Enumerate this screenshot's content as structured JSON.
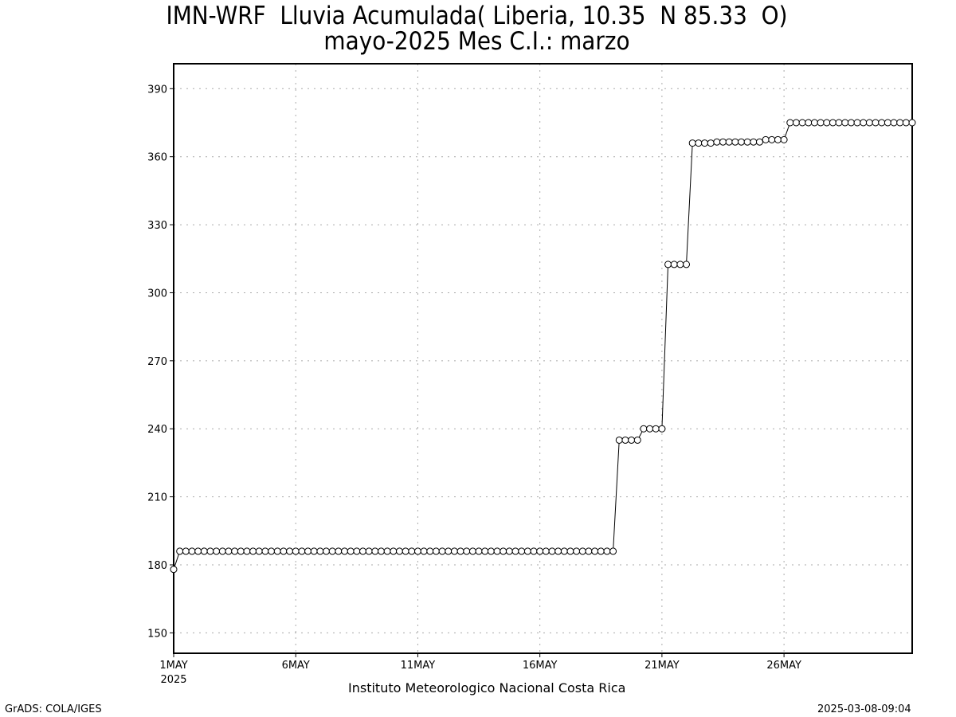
{
  "chart_data": {
    "type": "line",
    "title": "IMN-WRF  Lluvia Acumulada( Liberia, 10.35  N 85.33  O)",
    "subtitle": "mayo-2025 Mes C.I.: marzo",
    "xlabel": "Instituto Meteorologico Nacional Costa Rica",
    "ylabel": "",
    "x_range": [
      "2025-05-01 00:00",
      "2025-05-31 06:00"
    ],
    "x_step_hours": 6,
    "ylim": [
      141,
      401
    ],
    "y_ticks": [
      150,
      180,
      210,
      240,
      270,
      300,
      330,
      360,
      390
    ],
    "y_tick_labels": [
      "150",
      "180",
      "210",
      "240",
      "270",
      "300",
      "330",
      "360",
      "390"
    ],
    "x_tick_labels": [
      "1MAY",
      "6MAY",
      "11MAY",
      "16MAY",
      "21MAY",
      "26MAY"
    ],
    "x_tick_dates": [
      "2025-05-01",
      "2025-05-06",
      "2025-05-11",
      "2025-05-16",
      "2025-05-21",
      "2025-05-26"
    ],
    "x_year_label": "2025",
    "grid": true,
    "marker": "open-circle",
    "series": [
      {
        "values": [
          178,
          186,
          186,
          186,
          186,
          186,
          186,
          186,
          186,
          186,
          186,
          186,
          186,
          186,
          186,
          186,
          186,
          186,
          186,
          186,
          186,
          186,
          186,
          186,
          186,
          186,
          186,
          186,
          186,
          186,
          186,
          186,
          186,
          186,
          186,
          186,
          186,
          186,
          186,
          186,
          186,
          186,
          186,
          186,
          186,
          186,
          186,
          186,
          186,
          186,
          186,
          186,
          186,
          186,
          186,
          186,
          186,
          186,
          186,
          186,
          186,
          186,
          186,
          186,
          186,
          186,
          186,
          186,
          186,
          186,
          186,
          186,
          186,
          235,
          235,
          235,
          235,
          240,
          240,
          240,
          240,
          312.5,
          312.5,
          312.5,
          312.5,
          366,
          366,
          366,
          366,
          366.5,
          366.5,
          366.5,
          366.5,
          366.5,
          366.5,
          366.5,
          366.5,
          367.5,
          367.5,
          367.5,
          367.5,
          375,
          375,
          375,
          375,
          375,
          375,
          375,
          375,
          375,
          375,
          375,
          375,
          375,
          375,
          375,
          375,
          375,
          375,
          375,
          375,
          375
        ]
      }
    ]
  },
  "footer": {
    "left": "GrADS: COLA/IGES",
    "right": "2025-03-08-09:04"
  }
}
